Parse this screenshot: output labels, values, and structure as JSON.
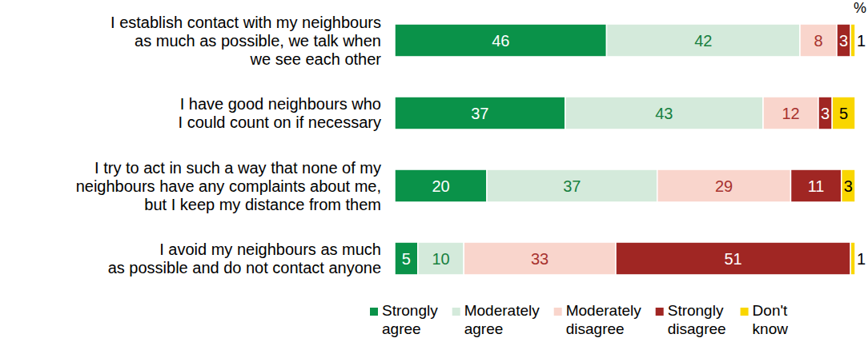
{
  "chart_data": {
    "type": "bar",
    "orientation": "horizontal",
    "stacked": true,
    "data_labels": true,
    "tick_labels": false,
    "legend": "bottom",
    "xlabel": "%",
    "categories": [
      "I establish contact with my neighbours\nas much as possible, we talk when\nwe see each other",
      "I have good neighbours who\nI could count on if necessary",
      "I try to act in such a way that none of my\nneighbours have any complaints about me,\nbut I keep my distance from them",
      "I avoid my neighbours as much\nas possible and do not contact anyone"
    ],
    "series": [
      {
        "name": "Strongly\nagree",
        "color": "#0a9249",
        "values": [
          46,
          37,
          20,
          5
        ]
      },
      {
        "name": "Moderately\nagree",
        "color": "#d4eadb",
        "values": [
          42,
          43,
          37,
          10
        ]
      },
      {
        "name": "Moderately\ndisagree",
        "color": "#f9d5cc",
        "values": [
          8,
          12,
          29,
          33
        ]
      },
      {
        "name": "Strongly\ndisagree",
        "color": "#a02623",
        "values": [
          3,
          3,
          11,
          51
        ]
      },
      {
        "name": "Don't\nknow",
        "color": "#f9d600",
        "values": [
          1,
          5,
          3,
          1
        ]
      }
    ]
  }
}
